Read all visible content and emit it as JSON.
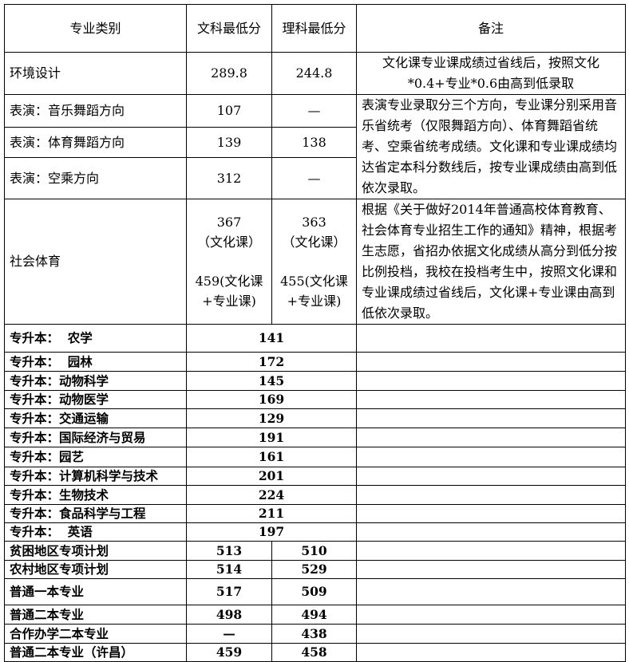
{
  "header": {
    "category": "专业类别",
    "arts_min": "文科最低分",
    "science_min": "理科最低分",
    "notes": "备注"
  },
  "rows_top": [
    {
      "category": "环境设计",
      "arts": "289.8",
      "science": "244.8",
      "note": "文化课专业课成绩过省线后，按照文化*0.4+专业*0.6由高到低录取"
    },
    {
      "category": "表演：音乐舞蹈方向",
      "arts": "107",
      "science": "—"
    },
    {
      "category": "表演：体育舞蹈方向",
      "arts": "139",
      "science": "138"
    },
    {
      "category": "表演：空乘方向",
      "arts": "312",
      "science": "—"
    }
  ],
  "performance_note": "表演专业录取分三个方向，专业课分别采用音乐省统考（仅限舞蹈方向）、体育舞蹈省统考、空乘省统考成绩。文化课和专业课成绩均达省定本科分数线后，按专业课成绩由高到低依次录取。",
  "social_sports": {
    "category": "社会体育",
    "arts_culture": "367",
    "arts_culture_label": "（文化课）",
    "arts_total": "459(文化课+专业课)",
    "science_culture": "363",
    "science_culture_label": "（文化课）",
    "science_total": "455(文化课+专业课)",
    "note": "根据《关于做好2014年普通高校体育教育、社会体育专业招生工作的通知》精神，根据考生志愿，省招办依据文化成绩从高分到低分按比例投档，我校在投档考生中，按照文化课和专业课成绩过省线后，文化课+专业课由高到低依次录取。"
  },
  "upgrade_rows": [
    {
      "category": "专升本：  农学",
      "score": "141"
    },
    {
      "category": "专升本：  园林",
      "score": "172"
    },
    {
      "category": "专升本：动物科学",
      "score": "145"
    },
    {
      "category": "专升本：动物医学",
      "score": "169"
    },
    {
      "category": "专升本：交通运输",
      "score": "129"
    },
    {
      "category": "专升本：国际经济与贸易",
      "score": "191"
    },
    {
      "category": "专升本：园艺",
      "score": "161"
    },
    {
      "category": "专升本：计算机科学与技术",
      "score": "201"
    },
    {
      "category": "专升本：生物技术",
      "score": "224"
    },
    {
      "category": "专升本：食品科学与工程",
      "score": "211"
    },
    {
      "category": "专升本：  英语",
      "score": "197"
    }
  ],
  "regular_rows": [
    {
      "category": "贫困地区专项计划",
      "arts": "513",
      "science": "510"
    },
    {
      "category": "农村地区专项计划",
      "arts": "514",
      "science": "529"
    },
    {
      "category": "普通一本专业",
      "arts": "517",
      "science": "509"
    },
    {
      "category": "普通二本专业",
      "arts": "498",
      "science": "494"
    },
    {
      "category": "合作办学二本专业",
      "arts": "—",
      "science": "438"
    },
    {
      "category": "普通二本专业（许昌）",
      "arts": "459",
      "science": "458"
    }
  ]
}
